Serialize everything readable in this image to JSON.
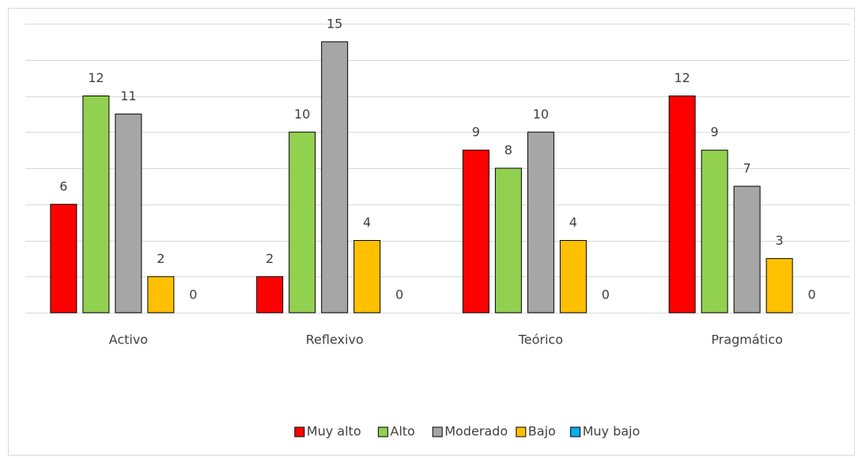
{
  "chart_data": {
    "type": "bar",
    "categories": [
      "Activo",
      "Reflexivo",
      "Teórico",
      "Pragmático"
    ],
    "series": [
      {
        "name": "Muy alto",
        "color": "#ff0000",
        "values": [
          6,
          2,
          9,
          12
        ]
      },
      {
        "name": "Alto",
        "color": "#92d050",
        "values": [
          12,
          10,
          8,
          9
        ]
      },
      {
        "name": "Moderado",
        "color": "#a6a6a6",
        "values": [
          11,
          15,
          10,
          7
        ]
      },
      {
        "name": "Bajo",
        "color": "#ffc000",
        "values": [
          2,
          4,
          4,
          3
        ]
      },
      {
        "name": "Muy bajo",
        "color": "#00b0f0",
        "values": [
          0,
          0,
          0,
          0
        ]
      }
    ],
    "ylim": [
      0,
      16
    ],
    "yticks": [
      0,
      2,
      4,
      6,
      8,
      10,
      12,
      14,
      16
    ],
    "grid": true,
    "legend": "bottom"
  }
}
